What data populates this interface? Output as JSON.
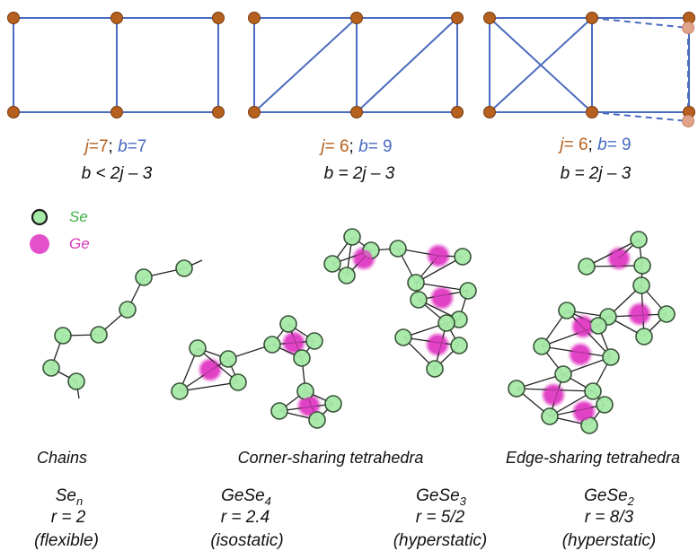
{
  "colors": {
    "edge": "#4a6bbf",
    "joint": "#b5601e",
    "ghost_joint": "#e0a38a",
    "j_text": "#b5601e",
    "b_text": "#4a6bbf",
    "se_fill": "#a6eaa8",
    "se_stroke": "#2f4a2f",
    "ge_fill": "#e03ec4",
    "bond": "#222222"
  },
  "frames": [
    {
      "j_label": "j",
      "j_value": "=7",
      "sep": ";",
      "b_label": "b",
      "b_value": "=7",
      "relation": "b < 2j – 3"
    },
    {
      "j_label": "j",
      "j_value": "= 6",
      "sep": ";",
      "b_label": "b",
      "b_value": "= 9",
      "relation": "b = 2j – 3"
    },
    {
      "j_label": "j",
      "j_value": "= 6",
      "sep": ";",
      "b_label": "b",
      "b_value": "= 9",
      "relation": "b = 2j – 3"
    }
  ],
  "legend": [
    {
      "symbol": "se",
      "label": "Se"
    },
    {
      "symbol": "ge",
      "label": "Ge"
    }
  ],
  "groups": [
    {
      "title": "Chains"
    },
    {
      "title": "Corner-sharing tetrahedra"
    },
    {
      "title": "Edge-sharing tetrahedra"
    }
  ],
  "compounds": [
    {
      "base": "Se",
      "sub": "n",
      "ratio": "r = 2",
      "rigidity": "(flexible)"
    },
    {
      "base": "GeSe",
      "sub": "4",
      "ratio": "r = 2.4",
      "rigidity": "(isostatic)"
    },
    {
      "base": "GeSe",
      "sub": "3",
      "ratio": "r = 5/2",
      "rigidity": "(hyperstatic)"
    },
    {
      "base": "GeSe",
      "sub": "2",
      "ratio": "r = 8/3",
      "rigidity": "(hyperstatic)"
    }
  ]
}
